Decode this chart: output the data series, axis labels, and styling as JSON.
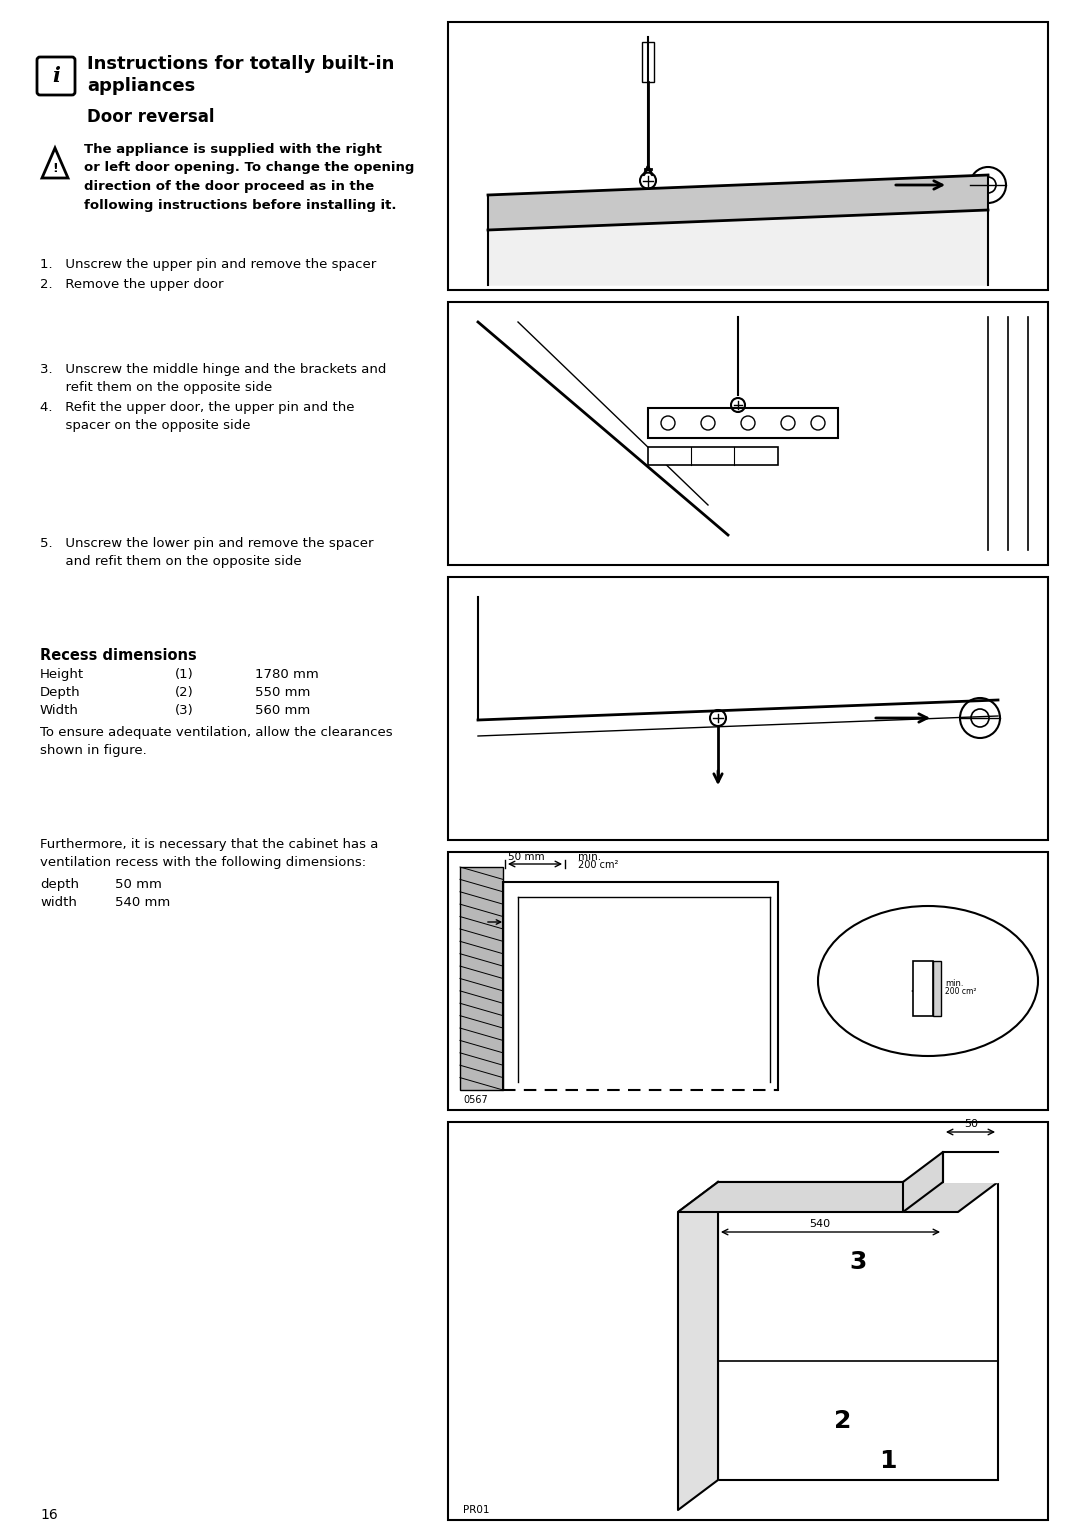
{
  "page_width": 10.8,
  "page_height": 15.37,
  "bg_color": "#ffffff",
  "title_line1": "Instructions for totally built-in",
  "title_line2": "appliances",
  "title_sub": "Door reversal",
  "warning_text": "The appliance is supplied with the right\nor left door opening. To change the opening\ndirection of the door proceed as in the\nfollowing instructions before installing it.",
  "step1": "1.   Unscrew the upper pin and remove the spacer",
  "step2": "2.   Remove the upper door",
  "step3a": "3.   Unscrew the middle hinge and the brackets and",
  "step3b": "      refit them on the opposite side",
  "step4a": "4.   Refit the upper door, the upper pin and the",
  "step4b": "      spacer on the opposite side",
  "step5a": "5.   Unscrew the lower pin and remove the spacer",
  "step5b": "      and refit them on the opposite side",
  "recess_title": "Recess dimensions",
  "h_label": "Height",
  "h_num": "(1)",
  "h_val": "1780 mm",
  "d_label": "Depth",
  "d_num": "(2)",
  "d_val": "550 mm",
  "w_label": "Width",
  "w_num": "(3)",
  "w_val": "560 mm",
  "note1": "To ensure adequate ventilation, allow the clearances",
  "note2": "shown in figure.",
  "vent1": "Furthermore, it is necessary that the cabinet has a",
  "vent2": "ventilation recess with the following dimensions:",
  "vd_label": "depth",
  "vd_val": "50 mm",
  "vw_label": "width",
  "vw_val": "540 mm",
  "page_num": "16"
}
